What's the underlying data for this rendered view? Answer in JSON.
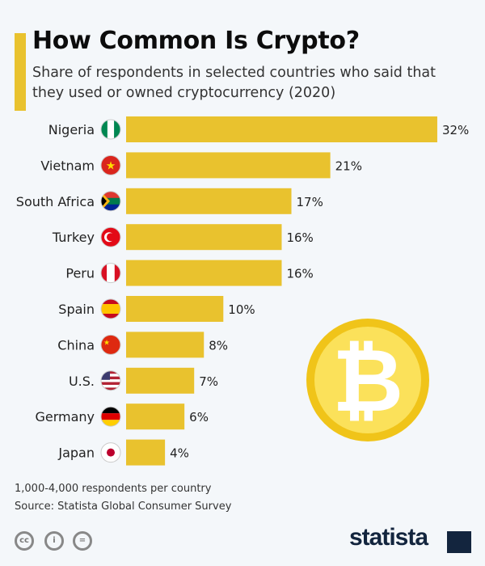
{
  "header": {
    "title": "How Common Is Crypto?",
    "subtitle": "Share of respondents in selected countries who said that they used or owned cryptocurrency (2020)"
  },
  "chart_data": {
    "type": "bar",
    "orientation": "horizontal",
    "categories": [
      "Nigeria",
      "Vietnam",
      "South Africa",
      "Turkey",
      "Peru",
      "Spain",
      "China",
      "U.S.",
      "Germany",
      "Japan"
    ],
    "values": [
      32,
      21,
      17,
      16,
      16,
      10,
      8,
      7,
      6,
      4
    ],
    "value_labels": [
      "32%",
      "21%",
      "17%",
      "16%",
      "16%",
      "10%",
      "8%",
      "7%",
      "6%",
      "4%"
    ],
    "unit": "%",
    "bar_color": "#e9c22e",
    "grid": false
  },
  "footer": {
    "note": "1,000-4,000 respondents per country",
    "source": "Source: Statista Global Consumer Survey",
    "brand": "statista",
    "cc_label": "cc"
  }
}
